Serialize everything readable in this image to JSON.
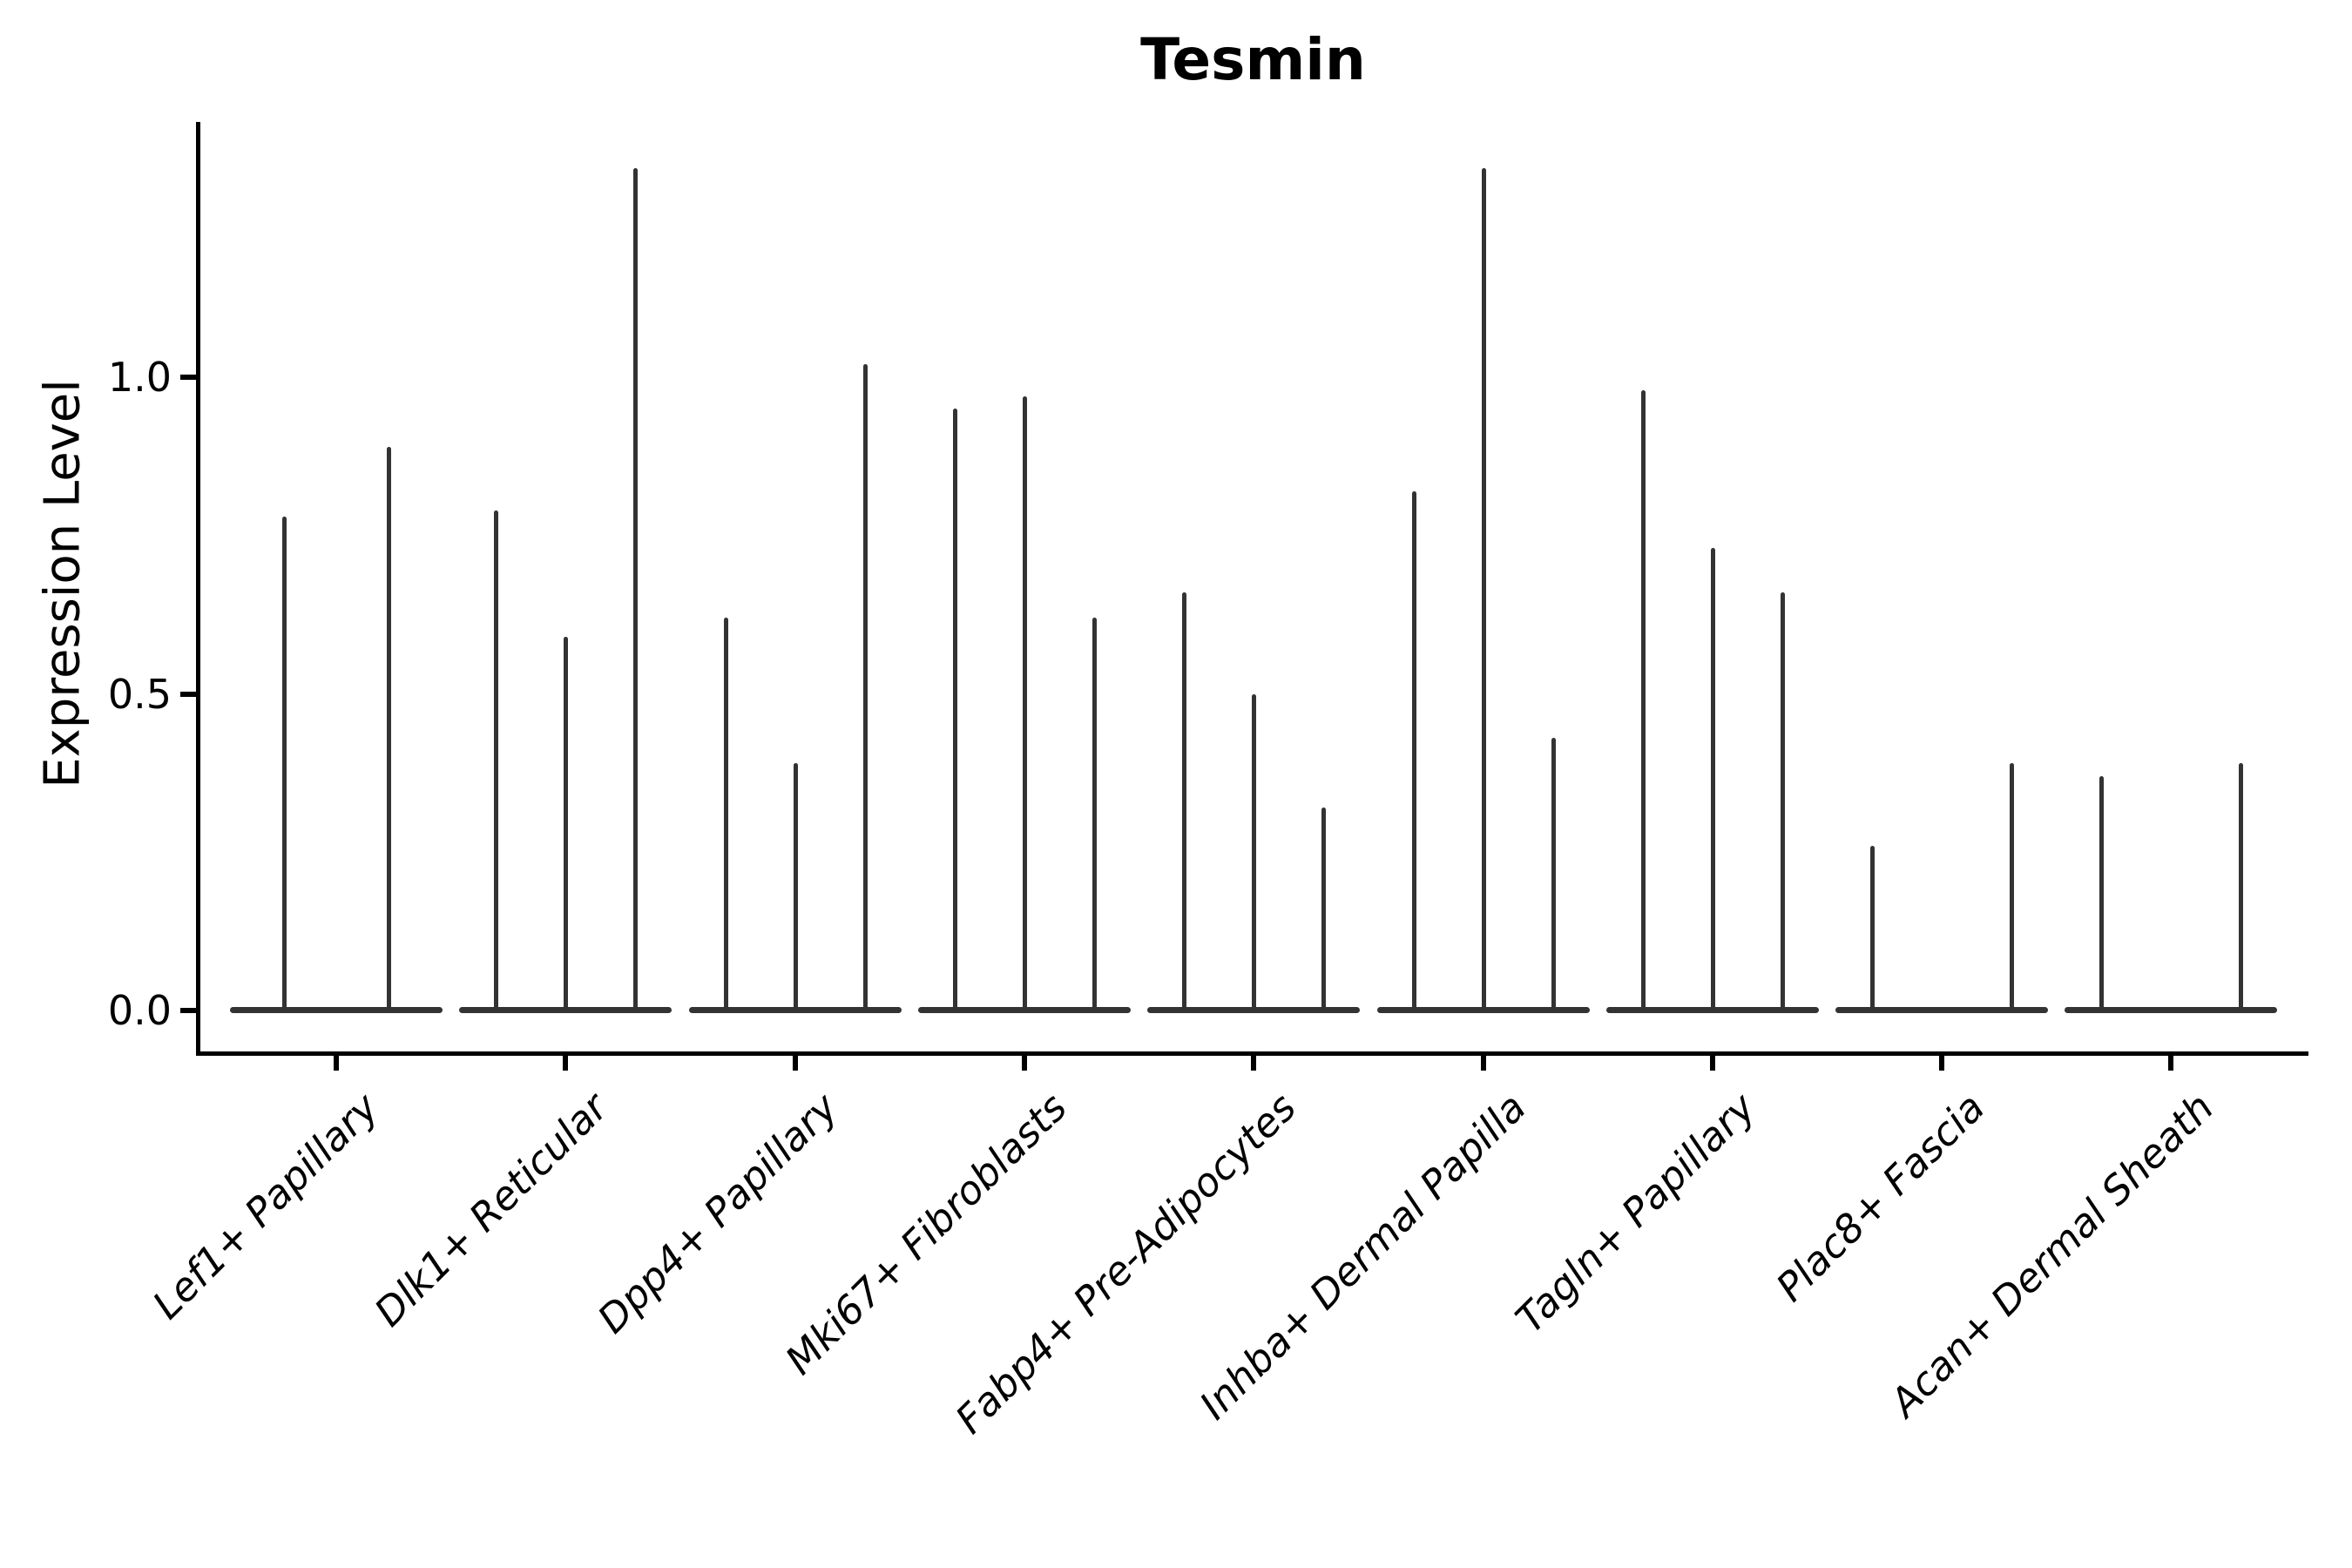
{
  "chart_data": {
    "type": "violin",
    "title": "Tesmin",
    "xlabel": "",
    "ylabel": "Expression Level",
    "ylim": [
      -0.065,
      1.4
    ],
    "grid": false,
    "legend": null,
    "yticks": [
      {
        "value": 0.0,
        "label": "0.0"
      },
      {
        "value": 0.5,
        "label": "0.5"
      },
      {
        "value": 1.0,
        "label": "1.0"
      }
    ],
    "categories": [
      "Lef1+ Papillary",
      "Dlk1+ Reticular",
      "Dpp4+ Papillary",
      "Mki67+ Fibroblasts",
      "Fabp4+ Pre-Adipocytes",
      "Inhba+ Dermal Papilla",
      "Tagln+ Papillary",
      "Plac8+ Fascia",
      "Acan+ Dermal Sheath"
    ],
    "series": [
      {
        "name": "Lef1+ Papillary",
        "violins": [
          {
            "dx": -60,
            "max": 0.78
          },
          {
            "dx": 60,
            "max": 0.89
          }
        ]
      },
      {
        "name": "Dlk1+ Reticular",
        "violins": [
          {
            "dx": -80,
            "max": 0.79
          },
          {
            "dx": 0,
            "max": 0.59
          },
          {
            "dx": 80,
            "max": 1.33
          }
        ]
      },
      {
        "name": "Dpp4+ Papillary",
        "violins": [
          {
            "dx": -80,
            "max": 0.62
          },
          {
            "dx": 0,
            "max": 0.39
          },
          {
            "dx": 80,
            "max": 1.02
          }
        ]
      },
      {
        "name": "Mki67+ Fibroblasts",
        "violins": [
          {
            "dx": -80,
            "max": 0.95
          },
          {
            "dx": 0,
            "max": 0.97
          },
          {
            "dx": 80,
            "max": 0.62
          }
        ]
      },
      {
        "name": "Fabp4+ Pre-Adipocytes",
        "violins": [
          {
            "dx": -80,
            "max": 0.66
          },
          {
            "dx": 0,
            "max": 0.5
          },
          {
            "dx": 80,
            "max": 0.32
          }
        ]
      },
      {
        "name": "Inhba+ Dermal Papilla",
        "violins": [
          {
            "dx": -80,
            "max": 0.82
          },
          {
            "dx": 0,
            "max": 1.33
          },
          {
            "dx": 80,
            "max": 0.43
          }
        ]
      },
      {
        "name": "Tagln+ Papillary",
        "violins": [
          {
            "dx": -80,
            "max": 0.98
          },
          {
            "dx": 0,
            "max": 0.73
          },
          {
            "dx": 80,
            "max": 0.66
          }
        ]
      },
      {
        "name": "Plac8+ Fascia",
        "violins": [
          {
            "dx": -80,
            "max": 0.26
          },
          {
            "dx": 80,
            "max": 0.39
          }
        ]
      },
      {
        "name": "Acan+ Dermal Sheath",
        "violins": [
          {
            "dx": -80,
            "max": 0.37
          },
          {
            "dx": 80,
            "max": 0.39
          }
        ]
      }
    ],
    "colors": {
      "violin": "#333333",
      "axis": "#000000",
      "text": "#000000",
      "background": "#ffffff"
    }
  }
}
